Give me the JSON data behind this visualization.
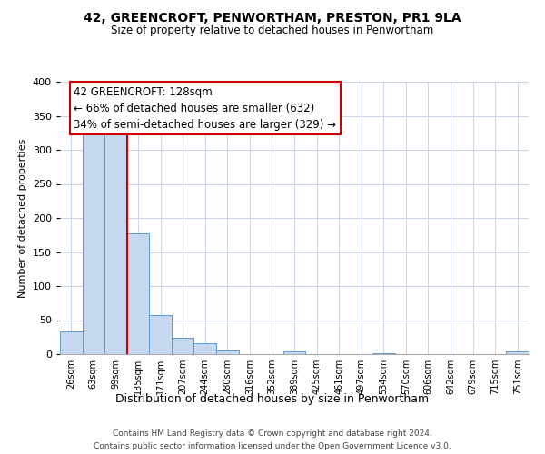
{
  "title": "42, GREENCROFT, PENWORTHAM, PRESTON, PR1 9LA",
  "subtitle": "Size of property relative to detached houses in Penwortham",
  "xlabel": "Distribution of detached houses by size in Penwortham",
  "ylabel": "Number of detached properties",
  "bar_labels": [
    "26sqm",
    "63sqm",
    "99sqm",
    "135sqm",
    "171sqm",
    "207sqm",
    "244sqm",
    "280sqm",
    "316sqm",
    "352sqm",
    "389sqm",
    "425sqm",
    "461sqm",
    "497sqm",
    "534sqm",
    "570sqm",
    "606sqm",
    "642sqm",
    "679sqm",
    "715sqm",
    "751sqm"
  ],
  "bar_values": [
    33,
    327,
    335,
    178,
    57,
    24,
    16,
    6,
    0,
    0,
    4,
    0,
    0,
    0,
    2,
    0,
    0,
    0,
    0,
    0,
    4
  ],
  "bar_color": "#c6d9f0",
  "bar_edge_color": "#5b9bd5",
  "vline_pos": 2.5,
  "vline_color": "#cc0000",
  "ylim": [
    0,
    400
  ],
  "yticks": [
    0,
    50,
    100,
    150,
    200,
    250,
    300,
    350,
    400
  ],
  "annotation_title": "42 GREENCROFT: 128sqm",
  "annotation_line1": "← 66% of detached houses are smaller (632)",
  "annotation_line2": "34% of semi-detached houses are larger (329) →",
  "annotation_box_color": "#ffffff",
  "annotation_box_edge": "#cc0000",
  "footer_line1": "Contains HM Land Registry data © Crown copyright and database right 2024.",
  "footer_line2": "Contains public sector information licensed under the Open Government Licence v3.0.",
  "background_color": "#ffffff",
  "grid_color": "#c8d4e8"
}
